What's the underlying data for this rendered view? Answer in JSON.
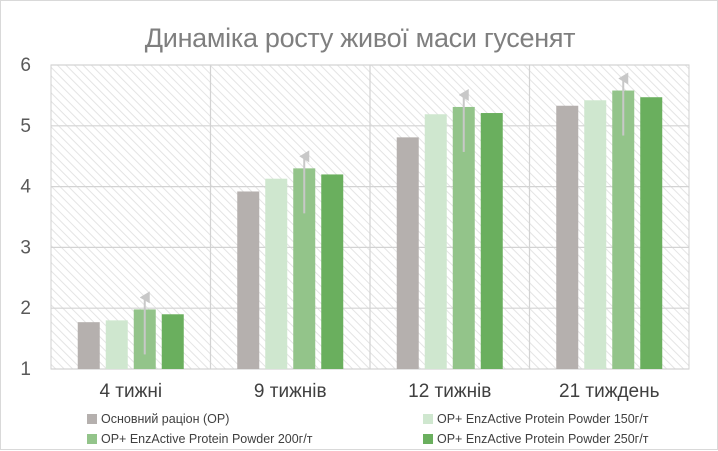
{
  "chart_data": {
    "type": "bar",
    "title": "Динаміка росту живої маси гусенят",
    "categories": [
      "4 тижні",
      "9 тижнів",
      "12 тижнів",
      "21 тиждень"
    ],
    "ylim": [
      1,
      6
    ],
    "yticks": [
      "1",
      "2",
      "3",
      "4",
      "5",
      "6"
    ],
    "grid": true,
    "legend_position": "bottom",
    "series": [
      {
        "name": "Основний раціон (ОР)",
        "color": "#b5b0ae",
        "values": [
          1.77,
          3.92,
          4.81,
          5.33
        ]
      },
      {
        "name": "ОР+ EnzActive Protein Powder 150г/т",
        "color": "#cfe7cf",
        "values": [
          1.8,
          4.13,
          5.19,
          5.42
        ]
      },
      {
        "name": "ОР+ EnzActive Protein Powder 200г/т",
        "color": "#93c48a",
        "values": [
          1.98,
          4.3,
          5.31,
          5.58
        ]
      },
      {
        "name": "ОР+ EnzActive Protein Powder 250г/т",
        "color": "#6aaf5e",
        "values": [
          1.9,
          4.2,
          5.21,
          5.47
        ]
      }
    ],
    "arrow_series_index": 2
  }
}
